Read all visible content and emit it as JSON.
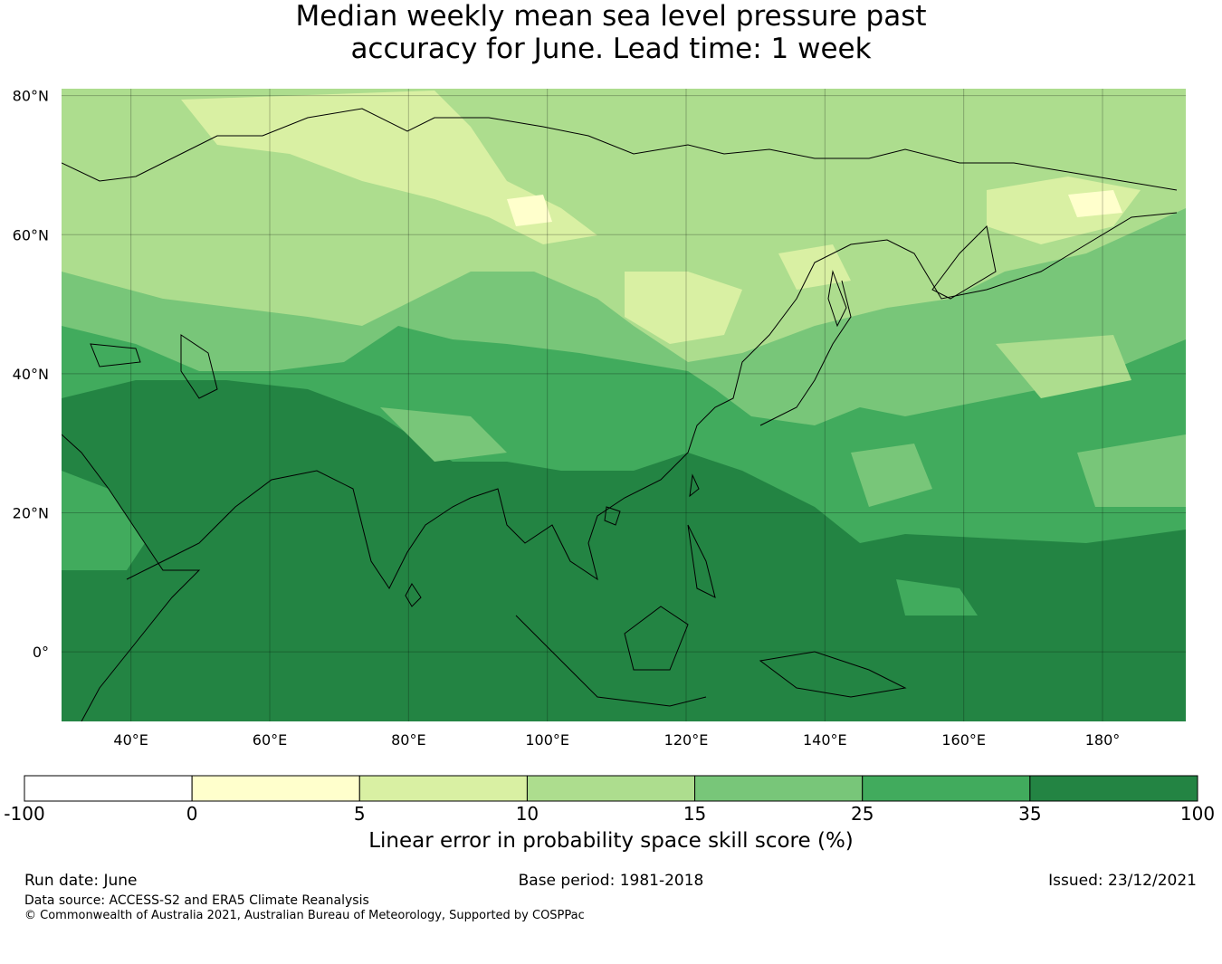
{
  "title": {
    "line1": "Median weekly mean sea level pressure past",
    "line2": "accuracy for June. Lead time: 1 week"
  },
  "map": {
    "lat_labels": [
      "80°N",
      "60°N",
      "40°N",
      "20°N",
      "0°"
    ],
    "lon_labels": [
      "40°E",
      "60°E",
      "80°E",
      "100°E",
      "120°E",
      "140°E",
      "160°E",
      "180°"
    ],
    "lat_values": [
      80,
      60,
      40,
      20,
      0
    ],
    "lon_values": [
      40,
      60,
      80,
      100,
      120,
      140,
      160,
      180
    ],
    "lat_range": [
      -10,
      81
    ],
    "lon_range": [
      30,
      192
    ],
    "gridlines": true
  },
  "colorbar": {
    "label": "Linear error in probability space skill score (%)",
    "ticks": [
      "-100",
      "0",
      "5",
      "10",
      "15",
      "25",
      "35",
      "100"
    ],
    "colors": [
      "#ffffff",
      "#ffffcc",
      "#d9f0a3",
      "#addd8e",
      "#78c679",
      "#41ab5d",
      "#238443"
    ]
  },
  "footer": {
    "run_date": "Run date: June",
    "base_period": "Base period: 1981-2018",
    "issued": "Issued: 23/12/2021",
    "data_source": "Data source: ACCESS-S2 and ERA5 Climate Reanalysis",
    "copyright": "© Commonwealth of Australia 2021, Australian Bureau of Meteorology, Supported by COSPPac"
  }
}
